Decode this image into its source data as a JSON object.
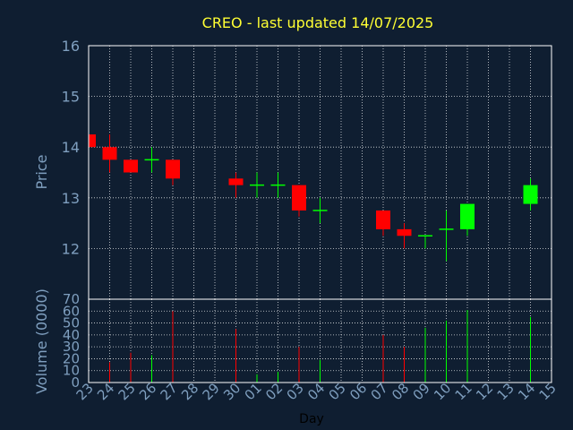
{
  "chart_data": {
    "type": "candlestick",
    "title": "CREO - last updated 14/07/2025",
    "xlabel": "Day",
    "price_panel": {
      "ylabel": "Price",
      "ylim": [
        11,
        16
      ],
      "yticks": [
        "12",
        "13",
        "14",
        "15",
        "16"
      ],
      "grid": true
    },
    "volume_panel": {
      "ylabel": "Volume (0000)",
      "ylim": [
        0,
        70
      ],
      "yticks": [
        "0",
        "10",
        "20",
        "30",
        "40",
        "50",
        "60",
        "70"
      ],
      "grid": true
    },
    "x_ticks": [
      "23",
      "24",
      "25",
      "26",
      "27",
      "28",
      "29",
      "30",
      "01",
      "02",
      "03",
      "04",
      "05",
      "06",
      "07",
      "08",
      "09",
      "10",
      "11",
      "12",
      "13",
      "14",
      "15"
    ],
    "colors": {
      "up": "#00ff00",
      "down": "#ff0000",
      "grid": "#ffffff",
      "frame": "#ffffff"
    },
    "candles": [
      {
        "day": "23",
        "open": 14.25,
        "high": 14.25,
        "low": 14.0,
        "close": 14.0
      },
      {
        "day": "24",
        "open": 14.0,
        "high": 14.25,
        "low": 13.5,
        "close": 13.75,
        "volume": 17
      },
      {
        "day": "25",
        "open": 13.75,
        "high": 13.75,
        "low": 13.5,
        "close": 13.5,
        "volume": 25
      },
      {
        "day": "26",
        "open": 13.75,
        "high": 14.0,
        "low": 13.5,
        "close": 13.75,
        "volume": 23
      },
      {
        "day": "27",
        "open": 13.75,
        "high": 13.75,
        "low": 13.25,
        "close": 13.38,
        "volume": 60
      },
      {
        "day": "30",
        "open": 13.38,
        "high": 13.5,
        "low": 13.0,
        "close": 13.25,
        "volume": 45
      },
      {
        "day": "01",
        "open": 13.25,
        "high": 13.5,
        "low": 13.0,
        "close": 13.25,
        "volume": 7
      },
      {
        "day": "02",
        "open": 13.25,
        "high": 13.5,
        "low": 13.0,
        "close": 13.25,
        "volume": 9
      },
      {
        "day": "03",
        "open": 13.25,
        "high": 13.25,
        "low": 12.63,
        "close": 12.75,
        "volume": 30
      },
      {
        "day": "04",
        "open": 12.75,
        "high": 13.0,
        "low": 12.5,
        "close": 12.75,
        "volume": 19
      },
      {
        "day": "07",
        "open": 12.75,
        "high": 12.75,
        "low": 12.25,
        "close": 12.38,
        "volume": 40
      },
      {
        "day": "08",
        "open": 12.38,
        "high": 12.5,
        "low": 12.0,
        "close": 12.25,
        "volume": 30
      },
      {
        "day": "09",
        "open": 12.25,
        "high": 12.25,
        "low": 12.0,
        "close": 12.25,
        "volume": 46
      },
      {
        "day": "10",
        "open": 12.38,
        "high": 12.75,
        "low": 11.75,
        "close": 12.38,
        "volume": 52
      },
      {
        "day": "11",
        "open": 12.38,
        "high": 12.88,
        "low": 12.25,
        "close": 12.88,
        "volume": 61
      },
      {
        "day": "14",
        "open": 12.88,
        "high": 13.38,
        "low": 12.75,
        "close": 13.25,
        "volume": 55
      }
    ]
  }
}
